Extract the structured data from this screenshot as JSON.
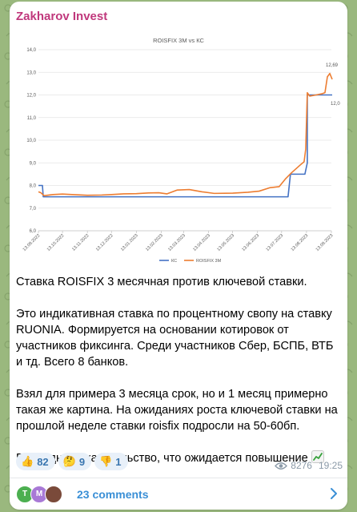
{
  "post": {
    "channel_name": "Zakharov Invest",
    "paragraphs": [
      "Ставка ROISFIX 3 месячная против ключевой ставки.",
      "Это индикативная ставка по процентному свопу на ставку RUONIA. Формируется на основании котировок от участников фиксинга. Среди участников Сбер, БСПБ, ВТБ и тд. Всего 8 банков.",
      "Взял для примера 3 месяца срок, но и 1 месяц примерно такая же картина. На ожиданиях роста ключевой ставки на прошлой неделе ставки roisfix подросли на 50-60бп.",
      "Еще одно доказательство, что ожидается повышение"
    ],
    "trend_icon": "chart-increasing-icon"
  },
  "reactions": [
    {
      "emoji": "👍",
      "icon": "thumbs-up-icon",
      "count": "82"
    },
    {
      "emoji": "🤔",
      "icon": "thinking-face-icon",
      "count": "9"
    },
    {
      "emoji": "👎",
      "icon": "thumbs-down-icon",
      "count": "1"
    }
  ],
  "meta": {
    "views": "8276",
    "time": "19:25",
    "icon": "eye-icon"
  },
  "comments": {
    "label": "23 comments",
    "avatars": [
      {
        "letter": "T",
        "color": "#4caf50"
      },
      {
        "letter": "M",
        "color": "#a879d6"
      },
      {
        "letter": "",
        "color": "#7a4a3a"
      }
    ]
  },
  "colors": {
    "ks": "#4472c4",
    "roisfix": "#ed7d31",
    "accent": "#c0387c",
    "link": "#3a8fd6"
  },
  "chart_data": {
    "type": "line",
    "title": "ROISFIX 3M vs КС",
    "ylim": [
      6.0,
      14.0
    ],
    "yticks": [
      "6,0",
      "7,0",
      "8,0",
      "9,0",
      "10,0",
      "11,0",
      "12,0",
      "13,0",
      "14,0"
    ],
    "xticks": [
      "13.09.2022",
      "13.10.2022",
      "13.11.2022",
      "13.12.2022",
      "13.01.2023",
      "13.02.2023",
      "13.03.2023",
      "13.04.2023",
      "13.05.2023",
      "13.06.2023",
      "13.07.2023",
      "13.08.2023",
      "13.09.2023"
    ],
    "legend": [
      "КС",
      "ROISFIX 3M"
    ],
    "legend_position": "bottom",
    "grid": true,
    "annotations": [
      {
        "series": "ROISFIX 3M",
        "label": "12,69"
      },
      {
        "series": "КС",
        "label": "12,0"
      }
    ],
    "series": [
      {
        "name": "КС",
        "points": [
          [
            "2022-09-13",
            8.0
          ],
          [
            "2022-09-18",
            8.0
          ],
          [
            "2022-09-19",
            7.5
          ],
          [
            "2023-07-21",
            7.5
          ],
          [
            "2023-07-24",
            8.5
          ],
          [
            "2023-08-11",
            8.5
          ],
          [
            "2023-08-14",
            9.0
          ],
          [
            "2023-08-14",
            12.0
          ],
          [
            "2023-09-14",
            12.0
          ]
        ]
      },
      {
        "name": "ROISFIX 3M",
        "points": [
          [
            "2022-09-13",
            7.72
          ],
          [
            "2022-09-16",
            7.68
          ],
          [
            "2022-09-20",
            7.55
          ],
          [
            "2022-10-01",
            7.6
          ],
          [
            "2022-10-13",
            7.62
          ],
          [
            "2022-10-25",
            7.6
          ],
          [
            "2022-11-13",
            7.57
          ],
          [
            "2022-12-01",
            7.58
          ],
          [
            "2022-12-13",
            7.6
          ],
          [
            "2022-12-28",
            7.63
          ],
          [
            "2023-01-13",
            7.64
          ],
          [
            "2023-01-28",
            7.67
          ],
          [
            "2023-02-10",
            7.68
          ],
          [
            "2023-02-20",
            7.63
          ],
          [
            "2023-03-05",
            7.8
          ],
          [
            "2023-03-20",
            7.82
          ],
          [
            "2023-04-05",
            7.72
          ],
          [
            "2023-04-20",
            7.65
          ],
          [
            "2023-05-13",
            7.66
          ],
          [
            "2023-06-01",
            7.7
          ],
          [
            "2023-06-15",
            7.75
          ],
          [
            "2023-06-28",
            7.9
          ],
          [
            "2023-07-10",
            7.95
          ],
          [
            "2023-07-18",
            8.3
          ],
          [
            "2023-07-25",
            8.55
          ],
          [
            "2023-08-05",
            8.9
          ],
          [
            "2023-08-10",
            9.05
          ],
          [
            "2023-08-12",
            9.6
          ],
          [
            "2023-08-14",
            12.1
          ],
          [
            "2023-08-17",
            11.95
          ],
          [
            "2023-08-25",
            12.0
          ],
          [
            "2023-09-01",
            12.05
          ],
          [
            "2023-09-05",
            12.1
          ],
          [
            "2023-09-08",
            12.8
          ],
          [
            "2023-09-11",
            12.95
          ],
          [
            "2023-09-14",
            12.69
          ]
        ]
      }
    ]
  }
}
